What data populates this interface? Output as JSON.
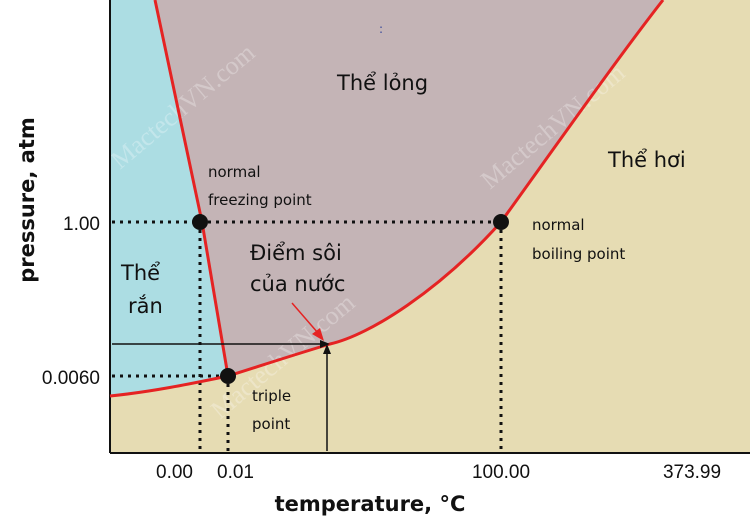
{
  "phases": {
    "liquid": "Thể lỏng",
    "gas": "Thể hơi",
    "solid_line1": "Thể",
    "solid_line2": "rắn"
  },
  "annotations": {
    "freezing_line1": "normal",
    "freezing_line2": "freezing point",
    "boiling_line1": "normal",
    "boiling_line2": "boiling point",
    "triple_line1": "triple",
    "triple_line2": "point",
    "water_boil_line1": "Điểm sôi",
    "water_boil_line2": "của nước",
    "colon_mark": ":"
  },
  "axes": {
    "ylabel": "pressure, atm",
    "xlabel": "temperature, °C",
    "yticks": [
      "1.00",
      "0.0060"
    ],
    "xticks": [
      "0.00",
      "0.01",
      "100.00",
      "373.99"
    ]
  },
  "watermark": "MactechVN.com",
  "colors": {
    "solid": "#acdde3",
    "liquid": "#c4b4b6",
    "gas": "#e6dcb3",
    "curve": "#e52323",
    "text": "#111111"
  }
}
